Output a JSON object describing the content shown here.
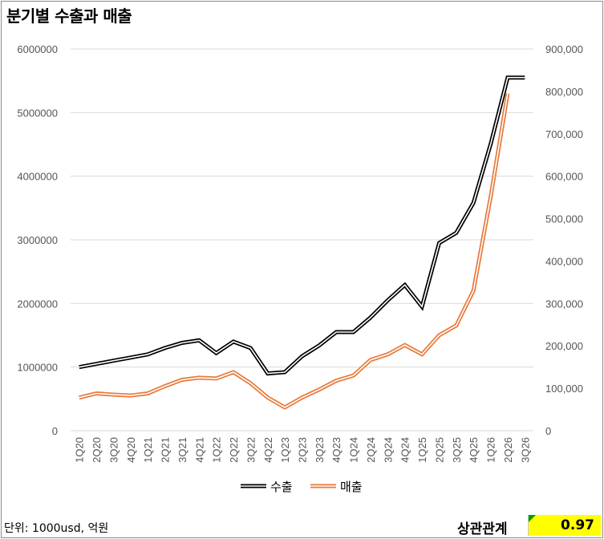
{
  "title": "분기별 수출과 매출",
  "unit_note": "단위: 1000usd, 억원",
  "correlation": {
    "label": "상관관계",
    "value": "0.97"
  },
  "colors": {
    "export": "#000000",
    "sales": "#e8793a",
    "grid": "#d9d9d9",
    "highlight": "#ffff00"
  },
  "chart_data": {
    "type": "line",
    "title": "분기별 수출과 매출",
    "categories": [
      "1Q20",
      "2Q20",
      "3Q20",
      "4Q20",
      "1Q21",
      "2Q21",
      "3Q21",
      "4Q21",
      "1Q22",
      "2Q22",
      "3Q22",
      "4Q22",
      "1Q23",
      "2Q23",
      "3Q23",
      "4Q23",
      "1Q24",
      "2Q24",
      "3Q24",
      "4Q24",
      "1Q25",
      "2Q25",
      "3Q25",
      "4Q25",
      "1Q26",
      "2Q26",
      "3Q26"
    ],
    "y_left": {
      "ylim": [
        0,
        6000000
      ],
      "ticks": [
        "0",
        "1000000",
        "2000000",
        "3000000",
        "4000000",
        "5000000",
        "6000000"
      ]
    },
    "y_right": {
      "ylim": [
        0,
        900000
      ],
      "ticks": [
        "0",
        "100,000",
        "200,000",
        "300,000",
        "400,000",
        "500,000",
        "600,000",
        "700,000",
        "800,000",
        "900,000"
      ]
    },
    "grid": true,
    "legend_position": "bottom",
    "series": [
      {
        "name": "수출",
        "axis": "left",
        "style": "double-line",
        "values": [
          1000000,
          1050000,
          1100000,
          1150000,
          1200000,
          1300000,
          1380000,
          1420000,
          1220000,
          1400000,
          1300000,
          900000,
          920000,
          1170000,
          1340000,
          1550000,
          1550000,
          1780000,
          2050000,
          2290000,
          1950000,
          2950000,
          3110000,
          3580000,
          4500000,
          5550000,
          5550000
        ]
      },
      {
        "name": "매출",
        "axis": "right",
        "style": "double-line",
        "values": [
          78000,
          88000,
          85000,
          83000,
          88000,
          105000,
          120000,
          125000,
          123000,
          138000,
          112000,
          78000,
          55000,
          78000,
          97000,
          118000,
          130000,
          167000,
          180000,
          202000,
          180000,
          225000,
          248000,
          330000,
          550000,
          795000,
          null
        ]
      }
    ]
  }
}
